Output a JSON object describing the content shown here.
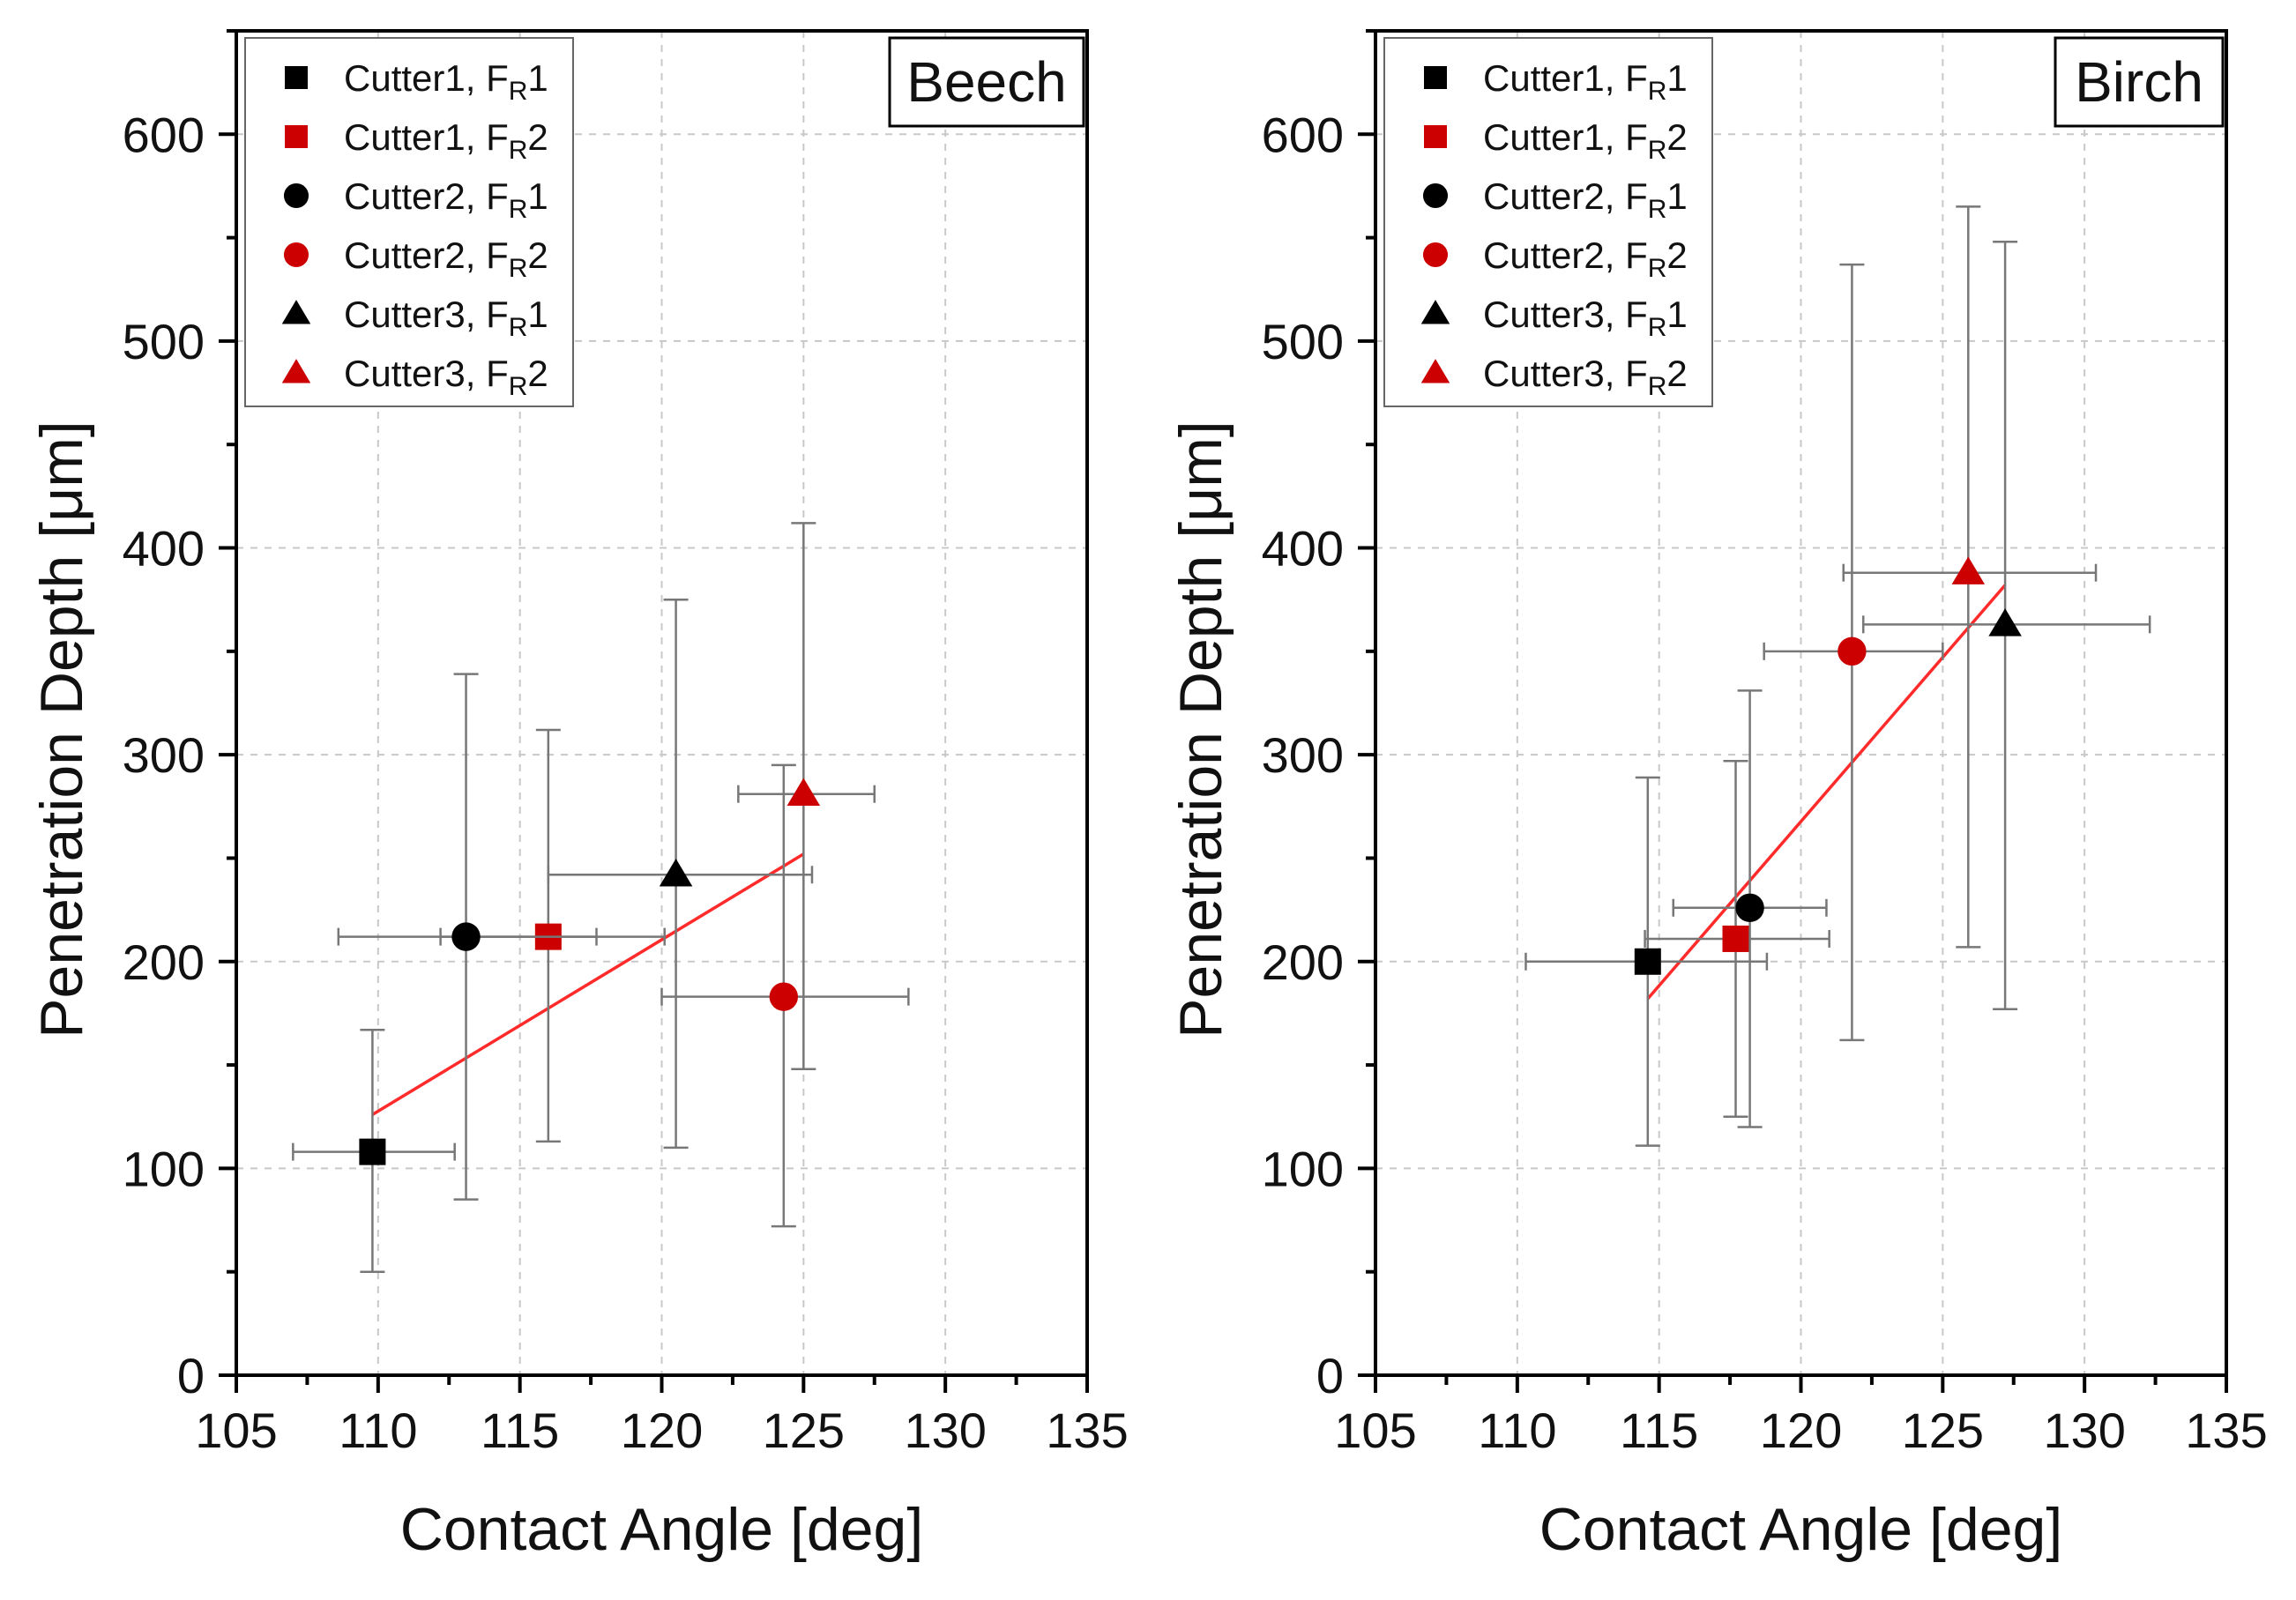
{
  "chart_data": [
    {
      "type": "scatter",
      "panel_label": "Beech",
      "xlabel": "Contact Angle [deg]",
      "ylabel": "Penetration Depth [μm]",
      "xlim": [
        105,
        135
      ],
      "ylim": [
        0,
        650
      ],
      "xticks": [
        105,
        110,
        115,
        120,
        125,
        130,
        135
      ],
      "yticks": [
        0,
        100,
        200,
        300,
        400,
        500,
        600
      ],
      "grid": true,
      "legend_position": "top-left",
      "series": [
        {
          "name": "Cutter1, FR1",
          "label_main": "Cutter1, F",
          "label_sub": "R",
          "label_end": "1",
          "color": "#000000",
          "marker": "square",
          "x": 109.8,
          "y": 108,
          "xerr": [
            107.0,
            112.7
          ],
          "yerr": [
            50,
            167
          ]
        },
        {
          "name": "Cutter1, FR2",
          "label_main": "Cutter1, F",
          "label_sub": "R",
          "label_end": "2",
          "color": "#cc0000",
          "marker": "square",
          "x": 116.0,
          "y": 212,
          "xerr": [
            112.2,
            117.7
          ],
          "yerr": [
            113,
            312
          ]
        },
        {
          "name": "Cutter2, FR1",
          "label_main": "Cutter2, F",
          "label_sub": "R",
          "label_end": "1",
          "color": "#000000",
          "marker": "circle",
          "x": 113.1,
          "y": 212,
          "xerr": [
            108.6,
            120.1
          ],
          "yerr": [
            85,
            339
          ]
        },
        {
          "name": "Cutter2, FR2",
          "label_main": "Cutter2, F",
          "label_sub": "R",
          "label_end": "2",
          "color": "#cc0000",
          "marker": "circle",
          "x": 124.3,
          "y": 183,
          "xerr": [
            120.0,
            128.7
          ],
          "yerr": [
            72,
            295
          ]
        },
        {
          "name": "Cutter3, FR1",
          "label_main": "Cutter3, F",
          "label_sub": "R",
          "label_end": "1",
          "color": "#000000",
          "marker": "triangle",
          "x": 120.5,
          "y": 242,
          "xerr": [
            116.0,
            125.3
          ],
          "yerr": [
            110,
            375
          ]
        },
        {
          "name": "Cutter3, FR2",
          "label_main": "Cutter3, F",
          "label_sub": "R",
          "label_end": "2",
          "color": "#cc0000",
          "marker": "triangle",
          "x": 125.0,
          "y": 281,
          "xerr": [
            122.7,
            127.5
          ],
          "yerr": [
            148,
            412
          ]
        }
      ],
      "fit_line": {
        "x": [
          109.8,
          125.0
        ],
        "y": [
          126,
          252
        ],
        "color": "#ff2a2a"
      }
    },
    {
      "type": "scatter",
      "panel_label": "Birch",
      "xlabel": "Contact Angle [deg]",
      "ylabel": "Penetration Depth [μm]",
      "xlim": [
        105,
        135
      ],
      "ylim": [
        0,
        650
      ],
      "xticks": [
        105,
        110,
        115,
        120,
        125,
        130,
        135
      ],
      "yticks": [
        0,
        100,
        200,
        300,
        400,
        500,
        600
      ],
      "grid": true,
      "legend_position": "top-left",
      "series": [
        {
          "name": "Cutter1, FR1",
          "label_main": "Cutter1, F",
          "label_sub": "R",
          "label_end": "1",
          "color": "#000000",
          "marker": "square",
          "x": 114.6,
          "y": 200,
          "xerr": [
            110.3,
            118.8
          ],
          "yerr": [
            111,
            289
          ]
        },
        {
          "name": "Cutter1, FR2",
          "label_main": "Cutter1, F",
          "label_sub": "R",
          "label_end": "2",
          "color": "#cc0000",
          "marker": "square",
          "x": 117.7,
          "y": 211,
          "xerr": [
            114.5,
            121.0
          ],
          "yerr": [
            125,
            297
          ]
        },
        {
          "name": "Cutter2, FR1",
          "label_main": "Cutter2, F",
          "label_sub": "R",
          "label_end": "1",
          "color": "#000000",
          "marker": "circle",
          "x": 118.2,
          "y": 226,
          "xerr": [
            115.5,
            120.9
          ],
          "yerr": [
            120,
            331
          ]
        },
        {
          "name": "Cutter2, FR2",
          "label_main": "Cutter2, F",
          "label_sub": "R",
          "label_end": "2",
          "color": "#cc0000",
          "marker": "circle",
          "x": 121.8,
          "y": 350,
          "xerr": [
            118.7,
            125.0
          ],
          "yerr": [
            162,
            537
          ]
        },
        {
          "name": "Cutter3, FR1",
          "label_main": "Cutter3, F",
          "label_sub": "R",
          "label_end": "1",
          "color": "#000000",
          "marker": "triangle",
          "x": 127.2,
          "y": 363,
          "xerr": [
            122.2,
            132.3
          ],
          "yerr": [
            177,
            548
          ]
        },
        {
          "name": "Cutter3, FR2",
          "label_main": "Cutter3, F",
          "label_sub": "R",
          "label_end": "2",
          "color": "#cc0000",
          "marker": "triangle",
          "x": 125.9,
          "y": 388,
          "xerr": [
            121.5,
            130.4
          ],
          "yerr": [
            207,
            565
          ]
        }
      ],
      "fit_line": {
        "x": [
          114.6,
          127.2
        ],
        "y": [
          182,
          382
        ],
        "color": "#ff2a2a"
      }
    }
  ]
}
